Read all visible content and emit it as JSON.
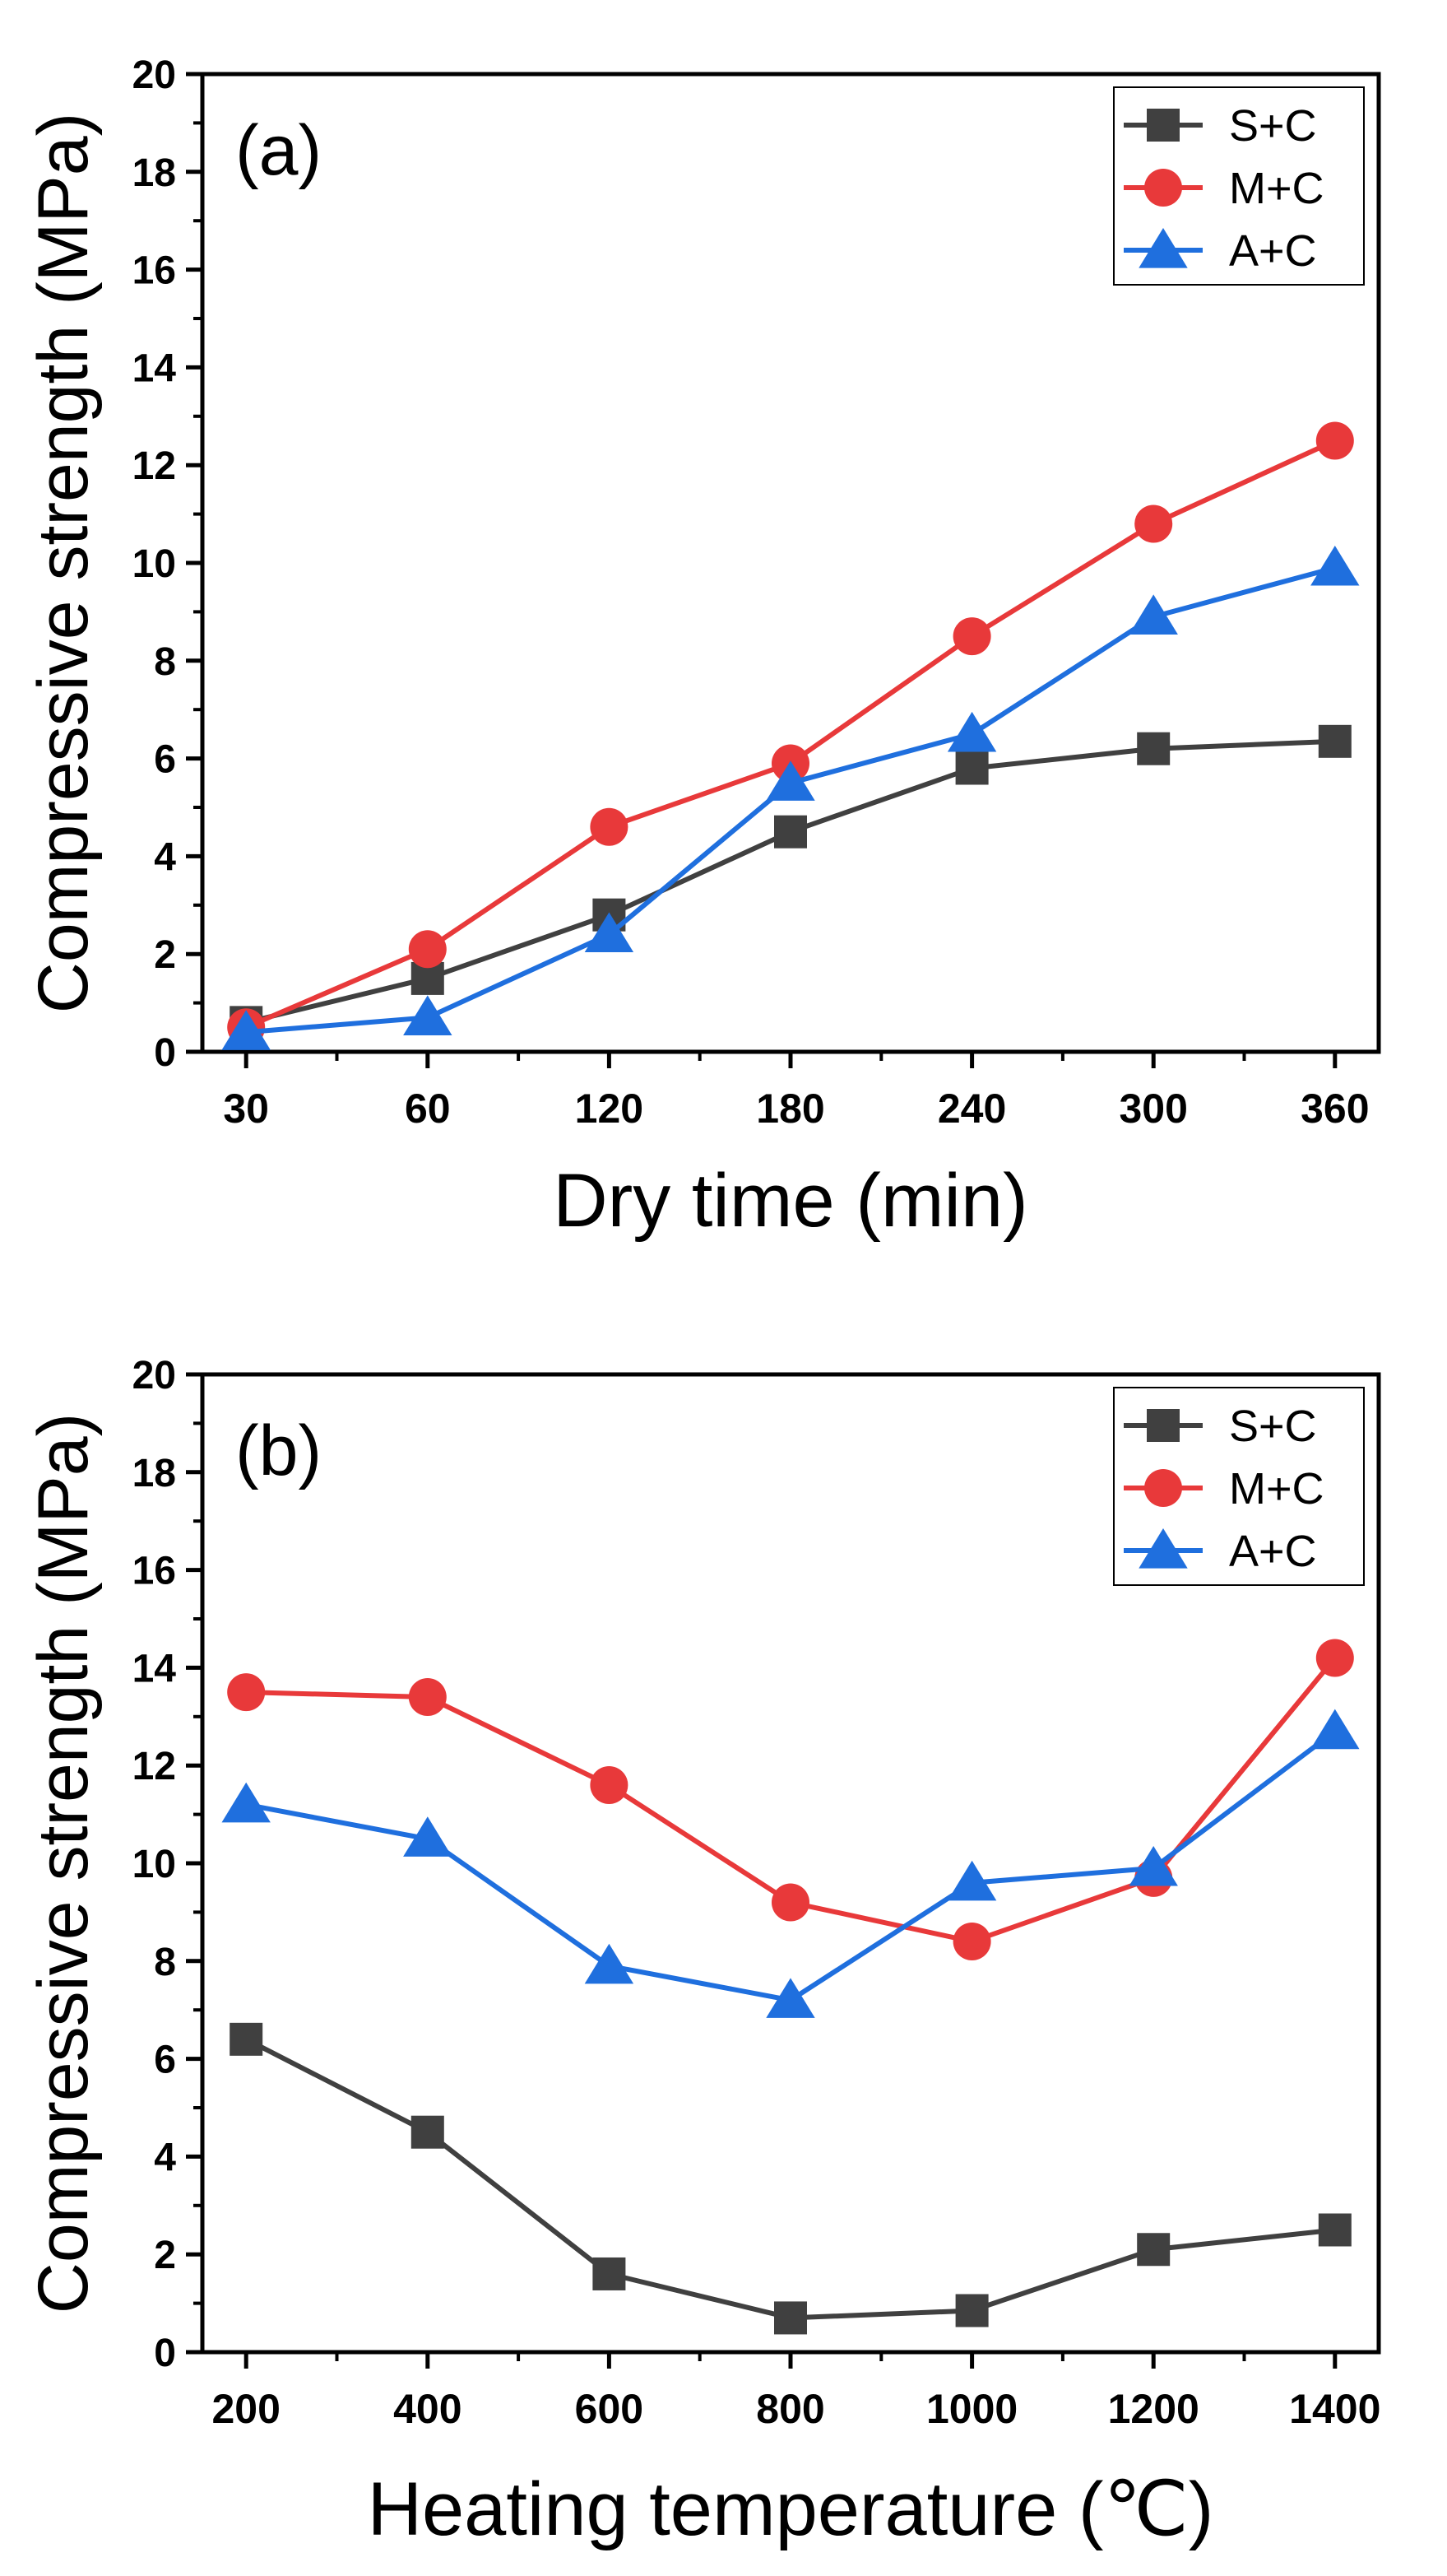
{
  "chart_data": [
    {
      "type": "line",
      "panel_label": "(a)",
      "title": "",
      "xlabel": "Dry time (min)",
      "ylabel": "Compressive strength (MPa)",
      "categories": [
        "30",
        "60",
        "120",
        "180",
        "240",
        "300",
        "360"
      ],
      "ylim": [
        0,
        20
      ],
      "yticks": [
        "0",
        "2",
        "4",
        "6",
        "8",
        "10",
        "12",
        "14",
        "16",
        "18",
        "20"
      ],
      "legend_position": "top-right",
      "series": [
        {
          "name": "S+C",
          "marker": "square",
          "color": "#404040",
          "values": [
            0.6,
            1.5,
            2.8,
            4.5,
            5.8,
            6.2,
            6.35
          ]
        },
        {
          "name": "M+C",
          "marker": "circle",
          "color": "#e8393a",
          "values": [
            0.5,
            2.1,
            4.6,
            5.9,
            8.5,
            10.8,
            12.5
          ]
        },
        {
          "name": "A+C",
          "marker": "triangle",
          "color": "#1f6fde",
          "values": [
            0.4,
            0.7,
            2.4,
            5.5,
            6.5,
            8.9,
            9.9
          ]
        }
      ]
    },
    {
      "type": "line",
      "panel_label": "(b)",
      "title": "",
      "xlabel": "Heating temperature (℃)",
      "ylabel": "Compressive strength (MPa)",
      "categories": [
        "200",
        "400",
        "600",
        "800",
        "1000",
        "1200",
        "1400"
      ],
      "ylim": [
        0,
        20
      ],
      "yticks": [
        "0",
        "2",
        "4",
        "6",
        "8",
        "10",
        "12",
        "14",
        "16",
        "18",
        "20"
      ],
      "legend_position": "top-right",
      "series": [
        {
          "name": "S+C",
          "marker": "square",
          "color": "#404040",
          "values": [
            6.4,
            4.5,
            1.6,
            0.7,
            0.85,
            2.1,
            2.5
          ]
        },
        {
          "name": "M+C",
          "marker": "circle",
          "color": "#e8393a",
          "values": [
            13.5,
            13.4,
            11.6,
            9.2,
            8.4,
            9.7,
            14.2
          ]
        },
        {
          "name": "A+C",
          "marker": "triangle",
          "color": "#1f6fde",
          "values": [
            11.2,
            10.5,
            7.9,
            7.2,
            9.6,
            9.9,
            12.7
          ]
        }
      ]
    }
  ]
}
